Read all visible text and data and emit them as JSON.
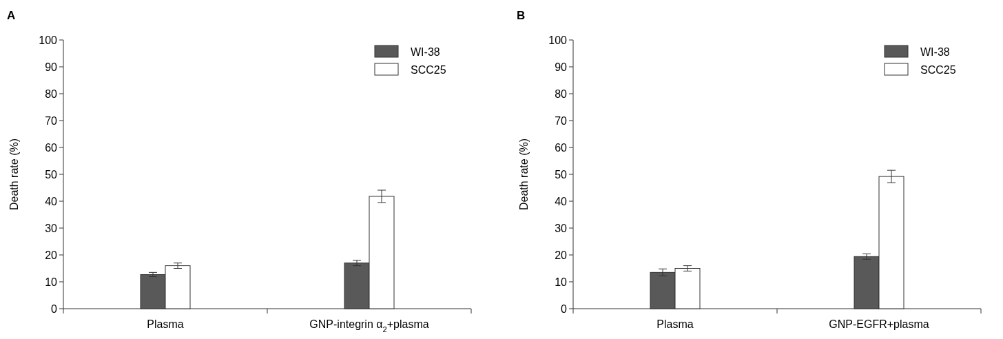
{
  "chart_data": [
    {
      "type": "bar",
      "title": "A",
      "ylabel": "Death rate (%)",
      "categories": [
        "Plasma",
        "GNP-integrin α$_{2}$+plasma"
      ],
      "series": [
        {
          "name": "WI-38",
          "color": "#595959",
          "values": [
            12.7,
            17
          ],
          "errors": [
            0.8,
            1
          ]
        },
        {
          "name": "SCC25",
          "color": "#ffffff",
          "values": [
            16,
            41.8
          ],
          "errors": [
            1,
            2.3
          ]
        }
      ],
      "ylim": [
        0,
        100
      ],
      "yticks": [
        0,
        10,
        20,
        30,
        40,
        50,
        60,
        70,
        80,
        90,
        100
      ],
      "grid": false,
      "legend": "top right"
    },
    {
      "type": "bar",
      "title": "B",
      "ylabel": "Death rate (%)",
      "categories": [
        "Plasma",
        "GNP-EGFR+plasma"
      ],
      "series": [
        {
          "name": "WI-38",
          "color": "#595959",
          "values": [
            13.5,
            19.4
          ],
          "errors": [
            1.3,
            1
          ]
        },
        {
          "name": "SCC25",
          "color": "#ffffff",
          "values": [
            15,
            49.2
          ],
          "errors": [
            1,
            2.3
          ]
        }
      ],
      "ylim": [
        0,
        100
      ],
      "yticks": [
        0,
        10,
        20,
        30,
        40,
        50,
        60,
        70,
        80,
        90,
        100
      ],
      "grid": false,
      "legend": "top right"
    }
  ]
}
